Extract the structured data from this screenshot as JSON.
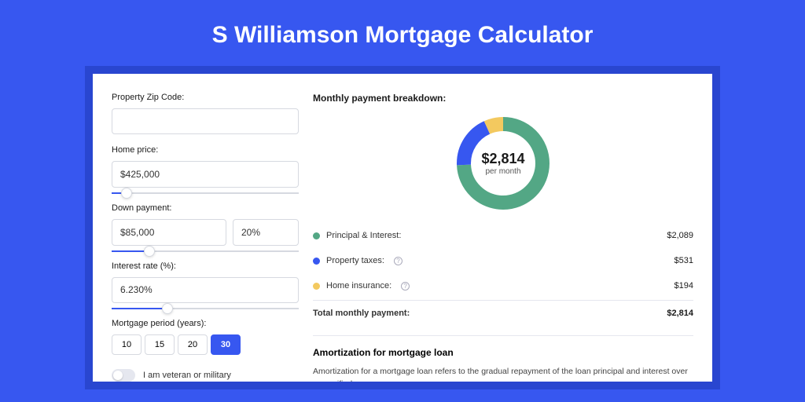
{
  "page": {
    "title": "S Williamson Mortgage Calculator",
    "bg_color": "#3757f0",
    "inner_bg": "#2946d0",
    "card_bg": "#ffffff"
  },
  "form": {
    "zip": {
      "label": "Property Zip Code:",
      "value": ""
    },
    "home_price": {
      "label": "Home price:",
      "value": "$425,000",
      "slider_pct": 8
    },
    "down_payment": {
      "label": "Down payment:",
      "value": "$85,000",
      "pct": "20%",
      "slider_pct": 20
    },
    "interest_rate": {
      "label": "Interest rate (%):",
      "value": "6.230%",
      "slider_pct": 30
    },
    "period": {
      "label": "Mortgage period (years):",
      "options": [
        "10",
        "15",
        "20",
        "30"
      ],
      "selected": "30"
    },
    "veteran": {
      "label": "I am veteran or military",
      "on": false
    }
  },
  "breakdown": {
    "title": "Monthly payment breakdown:",
    "center_amount": "$2,814",
    "center_sub": "per month",
    "items": [
      {
        "label": "Principal & Interest:",
        "value": "$2,089",
        "color": "#53a785",
        "info": false
      },
      {
        "label": "Property taxes:",
        "value": "$531",
        "color": "#3757f0",
        "info": true
      },
      {
        "label": "Home insurance:",
        "value": "$194",
        "color": "#f3c95f",
        "info": true
      }
    ],
    "total": {
      "label": "Total monthly payment:",
      "value": "$2,814"
    },
    "chart": {
      "type": "donut",
      "slices": [
        {
          "color": "#53a785",
          "value": 2089
        },
        {
          "color": "#3757f0",
          "value": 531
        },
        {
          "color": "#f3c95f",
          "value": 194
        }
      ],
      "stroke_width": 18,
      "radius": 50,
      "background_color": "#ffffff"
    }
  },
  "amortization": {
    "title": "Amortization for mortgage loan",
    "text": "Amortization for a mortgage loan refers to the gradual repayment of the loan principal and interest over a specified"
  }
}
